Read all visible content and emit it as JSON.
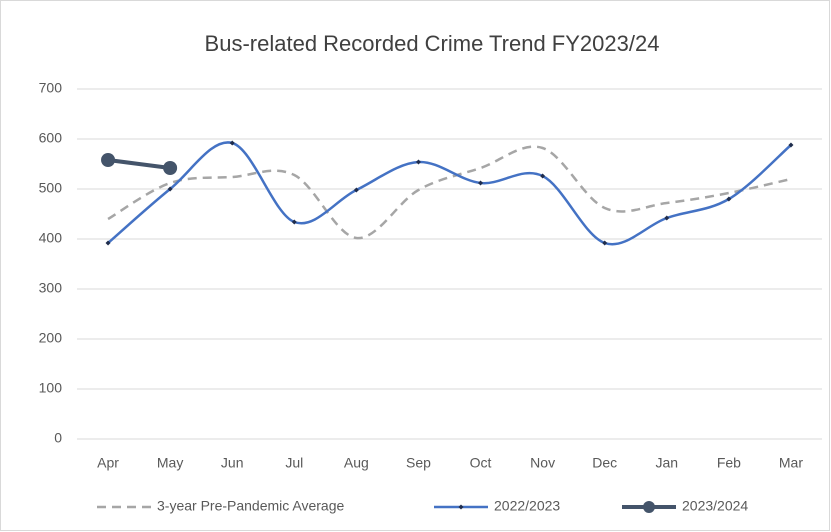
{
  "chart_data": {
    "type": "line",
    "title": "Bus-related Recorded Crime Trend FY2023/24",
    "categories": [
      "Apr",
      "May",
      "Jun",
      "Jul",
      "Aug",
      "Sep",
      "Oct",
      "Nov",
      "Dec",
      "Jan",
      "Feb",
      "Mar"
    ],
    "series": [
      {
        "name": "3-year Pre-Pandemic Average",
        "color": "#a6a6a6",
        "dashed": true,
        "marker": "none",
        "values": [
          440,
          512,
          524,
          528,
          402,
          498,
          542,
          582,
          462,
          472,
          492,
          520
        ]
      },
      {
        "name": "2022/2023",
        "color": "#4472c4",
        "dashed": false,
        "marker": "diamond",
        "values": [
          392,
          500,
          592,
          434,
          498,
          554,
          512,
          526,
          392,
          442,
          480,
          588
        ]
      },
      {
        "name": "2023/2024",
        "color": "#44546a",
        "dashed": false,
        "marker": "circle",
        "values": [
          558,
          542,
          null,
          null,
          null,
          null,
          null,
          null,
          null,
          null,
          null,
          null
        ]
      }
    ],
    "ylim": [
      0,
      700
    ],
    "yticks": [
      0,
      100,
      200,
      300,
      400,
      500,
      600,
      700
    ],
    "grid": true,
    "smooth": true,
    "legend": "bottom"
  }
}
